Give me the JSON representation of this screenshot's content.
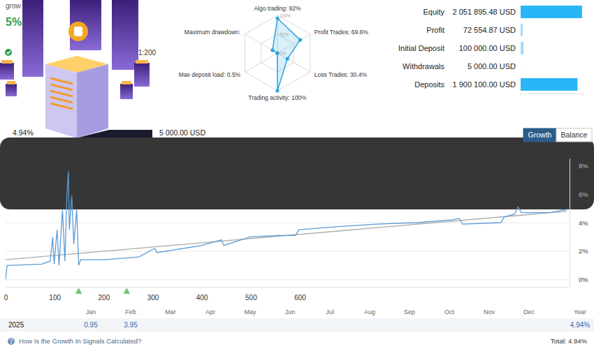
{
  "header": {
    "title_fragment": "grow",
    "growth": "5%",
    "leverage": "1:200",
    "growth_stat": "4.94%",
    "stat_value": "5 000.00 USD"
  },
  "tabs": [
    "Growth",
    "Balance"
  ],
  "active_tab": "Growth",
  "chart_data": [
    {
      "type": "radar",
      "categories": [
        "Algo trading: 92%",
        "Profit Trades: 69.6%",
        "Loss Trades: 30.4%",
        "Trading activity: 100%",
        "Max deposit load: 0.5%",
        "Maximum drawdown:"
      ],
      "values": [
        92,
        69.6,
        30.4,
        100,
        0.5,
        15
      ],
      "ylim": [
        0,
        100
      ],
      "yticks": [
        {
          "value": 0,
          "label": "0%"
        },
        {
          "value": 50,
          "label": "50%"
        },
        {
          "value": 100,
          "label": "100%"
        }
      ],
      "color": "#2ba6de",
      "marker": "circle"
    },
    {
      "type": "bar",
      "orientation": "horizontal",
      "categories": [
        "Equity",
        "Profit",
        "Initial Deposit",
        "Withdrawals",
        "Deposits"
      ],
      "values": [
        2051895.48,
        72554.87,
        100000,
        5000,
        1900100
      ],
      "value_labels": [
        "2 051 895.48 USD",
        "72 554.87 USD",
        "100 000.00 USD",
        "5 000.00 USD",
        "1 900 100.00 USD"
      ],
      "colors": [
        "#29b6f6",
        "#a6dcf2",
        "#a6dcf2",
        "#dbeff8",
        "#29b6f6"
      ],
      "ylim": [
        0,
        2100000
      ],
      "yticks": [
        0,
        2100000
      ],
      "tick_labels": false,
      "data_labels": true
    },
    {
      "type": "line",
      "series": [
        {
          "color": "#5b9bd5",
          "line_style": "solid",
          "x": [
            0,
            3,
            74,
            91,
            96,
            99,
            105,
            109,
            116,
            121,
            125,
            128,
            130,
            135,
            139,
            145,
            149,
            153,
            201,
            272,
            304,
            309,
            400,
            440,
            445,
            499,
            556,
            591,
            598,
            669,
            755,
            840,
            911,
            925,
            932,
            1010,
            1017,
            1038,
            1045,
            1052,
            1109,
            1145
          ],
          "values": [
            0,
            1.0,
            1.1,
            1.3,
            3.0,
            1.1,
            3.5,
            1.0,
            4.9,
            1.3,
            5.9,
            7.6,
            3.5,
            5.9,
            2.5,
            4.9,
            1.0,
            1.4,
            1.4,
            1.6,
            2.2,
            1.9,
            2.4,
            2.8,
            2.4,
            3.0,
            3.1,
            3.1,
            3.5,
            3.7,
            3.9,
            4.0,
            4.2,
            4.3,
            3.9,
            4.0,
            4.4,
            4.6,
            5.1,
            4.7,
            4.7,
            4.94
          ]
        },
        {
          "color": "#aaaaaa",
          "line_style": "solid",
          "x": [
            0,
            1145
          ],
          "values": [
            1.4,
            4.8
          ]
        }
      ],
      "deposit_markers": [
        149,
        247
      ],
      "xlim": [
        0,
        1150
      ],
      "xticks": [
        0,
        100,
        200,
        300,
        400,
        500,
        600
      ],
      "ylim": [
        -0.5,
        8.5
      ],
      "yticks": [
        {
          "value": 0,
          "label": "0%"
        },
        {
          "value": 2,
          "label": "2%"
        },
        {
          "value": 4,
          "label": "4%"
        },
        {
          "value": 6,
          "label": "6%"
        },
        {
          "value": 8,
          "label": "8%"
        }
      ],
      "grid": true
    }
  ],
  "monthly_table": {
    "months": [
      "Jan",
      "Feb",
      "Mar",
      "Apr",
      "May",
      "Jun",
      "Jul",
      "Aug",
      "Sep",
      "Oct",
      "Nov",
      "Dec"
    ],
    "year_header": "Year",
    "year": "2025",
    "values": [
      0.95,
      3.95,
      null,
      null,
      null,
      null,
      null,
      null,
      null,
      null,
      null,
      null
    ],
    "total": "4.94%"
  },
  "footer": {
    "link": "How Is the Growth In Signals Calculated?",
    "total": "Total: 4.94%"
  }
}
